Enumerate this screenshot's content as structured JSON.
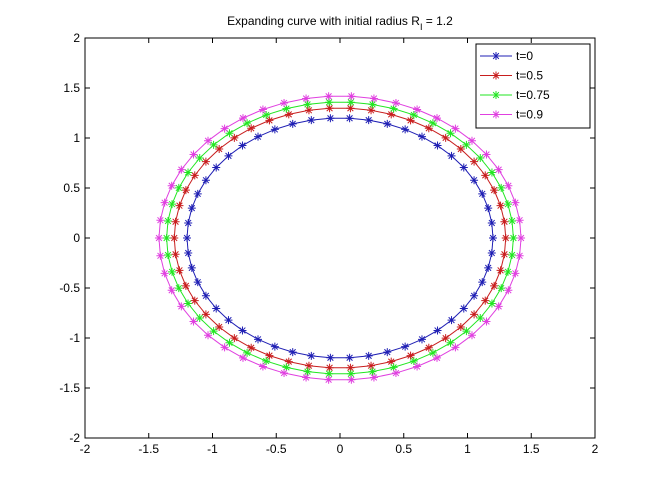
{
  "chart_data": {
    "type": "line",
    "title": "Expanding curve with initial radius R",
    "title_subscript": "I",
    "title_suffix": " = 1.2",
    "xlabel": "",
    "ylabel": "",
    "xlim": [
      -2,
      2
    ],
    "ylim": [
      -2,
      2
    ],
    "xticks": [
      "-2",
      "-1.5",
      "-1",
      "-0.5",
      "0",
      "0.5",
      "1",
      "1.5",
      "2"
    ],
    "yticks": [
      "-2",
      "-1.5",
      "-1",
      "-0.5",
      "0",
      "0.5",
      "1",
      "1.5",
      "2"
    ],
    "grid": false,
    "legend_position": "top-right",
    "marker": "asterisk",
    "points_per_curve": 50,
    "curve_shape": "circle of the given radius, sampled uniformly in angle",
    "series": [
      {
        "name": "t=0",
        "radius": 1.2,
        "color": "#1f1fb4"
      },
      {
        "name": "t=0.5",
        "radius": 1.3,
        "color": "#c81e1e"
      },
      {
        "name": "t=0.75",
        "radius": 1.36,
        "color": "#22e622"
      },
      {
        "name": "t=0.9",
        "radius": 1.42,
        "color": "#e040e0"
      }
    ]
  }
}
